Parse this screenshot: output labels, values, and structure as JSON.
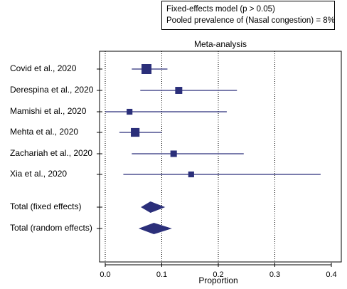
{
  "annotation": {
    "line1": "Fixed-effects model (p > 0.05)",
    "line2": "Pooled prevalence of (Nasal congestion) = 8%"
  },
  "chart_data": {
    "type": "forest",
    "title": "Meta-analysis",
    "xlabel": "Proportion",
    "xlim": [
      0,
      0.4
    ],
    "xticks": [
      0.0,
      0.1,
      0.2,
      0.3,
      0.4
    ],
    "xtick_labels": [
      "0.0",
      "0.1",
      "0.2",
      "0.3",
      "0.4"
    ],
    "reference_lines": [
      0.0,
      0.1,
      0.2,
      0.3
    ],
    "studies": [
      {
        "label": "Covid et al., 2020",
        "estimate": 0.073,
        "ci": [
          0.047,
          0.11
        ],
        "weight": 1.0
      },
      {
        "label": "Derespina et al., 2020",
        "estimate": 0.13,
        "ci": [
          0.062,
          0.233
        ],
        "weight": 0.55
      },
      {
        "label": "Mamishi et al., 2020",
        "estimate": 0.043,
        "ci": [
          0.0,
          0.215
        ],
        "weight": 0.35
      },
      {
        "label": "Mehta et al., 2020",
        "estimate": 0.053,
        "ci": [
          0.025,
          0.1
        ],
        "weight": 0.8
      },
      {
        "label": "Zachariah et al., 2020",
        "estimate": 0.121,
        "ci": [
          0.047,
          0.245
        ],
        "weight": 0.45
      },
      {
        "label": "Xia et al., 2020",
        "estimate": 0.152,
        "ci": [
          0.032,
          0.381
        ],
        "weight": 0.35
      }
    ],
    "totals": [
      {
        "label": "Total (fixed effects)",
        "estimate": 0.08,
        "ci": [
          0.063,
          0.106
        ]
      },
      {
        "label": "Total (random effects)",
        "estimate": 0.086,
        "ci": [
          0.059,
          0.118
        ]
      }
    ],
    "colors": {
      "marker": "#2b2f7a",
      "axis": "#000000",
      "refline": "#000000"
    }
  }
}
